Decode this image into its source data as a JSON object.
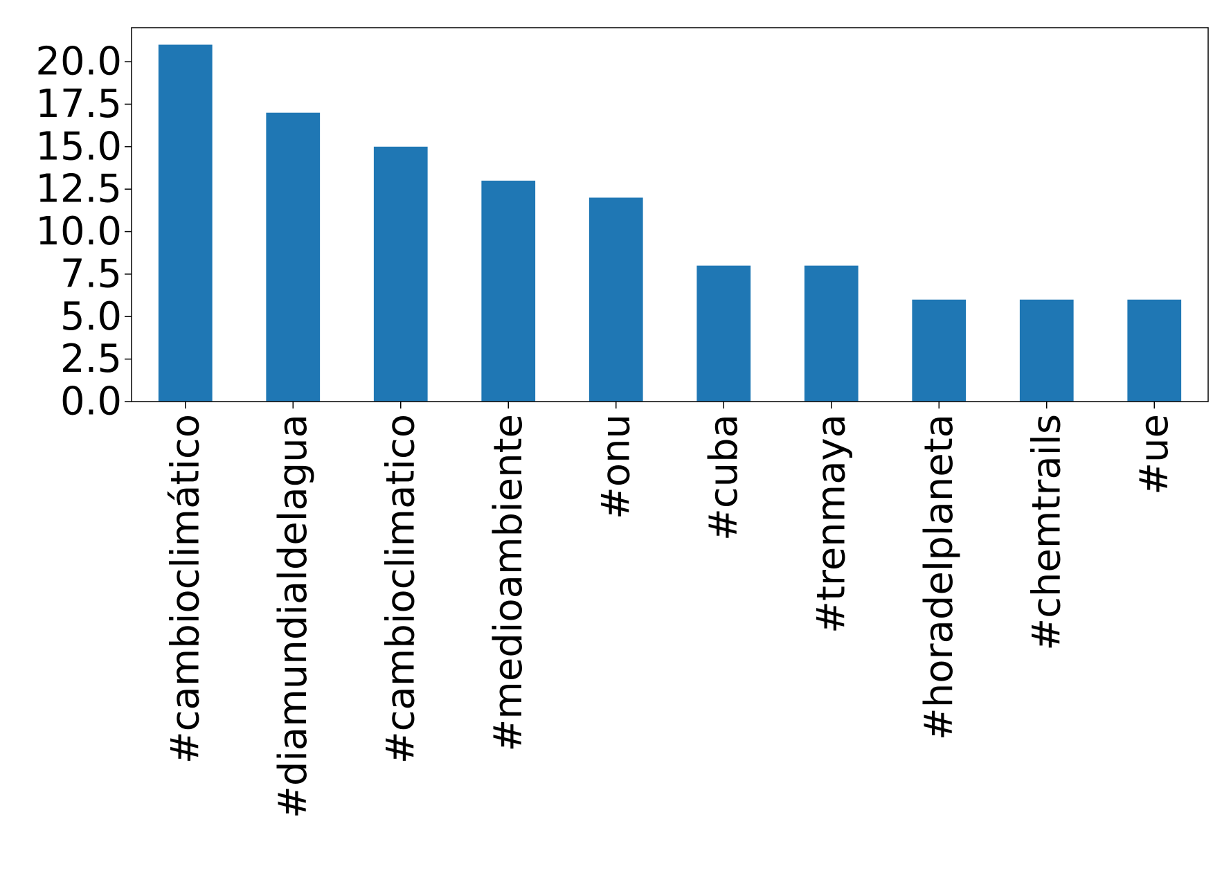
{
  "chart_data": {
    "type": "bar",
    "categories": [
      "#cambioclimático",
      "#diamundialdelagua",
      "#cambioclimatico",
      "#medioambiente",
      "#onu",
      "#cuba",
      "#trenmaya",
      "#horadelplaneta",
      "#chemtrails",
      "#ue"
    ],
    "values": [
      21,
      17,
      15,
      13,
      12,
      8,
      8,
      6,
      6,
      6
    ],
    "title": "",
    "xlabel": "",
    "ylabel": "",
    "ylim": [
      0,
      22
    ],
    "yticks": [
      "0.0",
      "2.5",
      "5.0",
      "7.5",
      "10.0",
      "12.5",
      "15.0",
      "17.5",
      "20.0"
    ],
    "grid": false,
    "legend": false,
    "bar_color": "#1f77b4"
  }
}
